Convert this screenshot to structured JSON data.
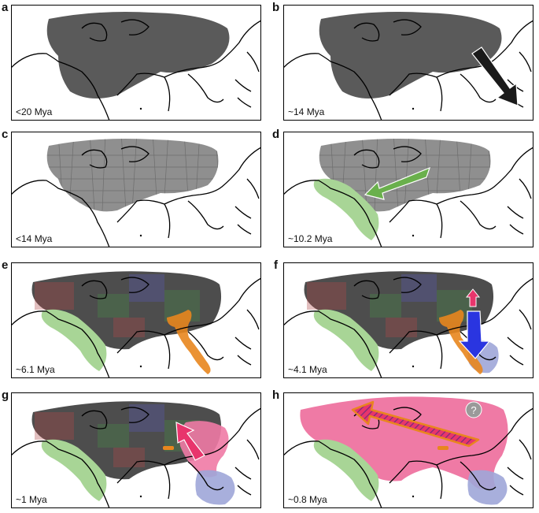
{
  "panels": [
    {
      "letter": "a",
      "age": "<20 Mya"
    },
    {
      "letter": "b",
      "age": "~14 Mya"
    },
    {
      "letter": "c",
      "age": "<14 Mya"
    },
    {
      "letter": "d",
      "age": "~10.2 Mya"
    },
    {
      "letter": "e",
      "age": "~6.1 Mya"
    },
    {
      "letter": "f",
      "age": "~4.1 Mya"
    },
    {
      "letter": "g",
      "age": "~1 Mya"
    },
    {
      "letter": "h",
      "age": "~0.8 Mya"
    }
  ],
  "question_mark": "?",
  "colors": {
    "eurasia_range": "#5a5a5a",
    "fragmented_range": "#8f8f8f",
    "african_range": "#a8d596",
    "green_arrow": "#6ab04c",
    "orange_range": "#e8861e",
    "blue_range": "#9fa6d8",
    "blue_arrow": "#2a35e0",
    "pink_range": "#ef7aa5",
    "pink_arrow": "#e8356c",
    "black_arrow": "#1a1a1a",
    "coastline": "#000000"
  }
}
